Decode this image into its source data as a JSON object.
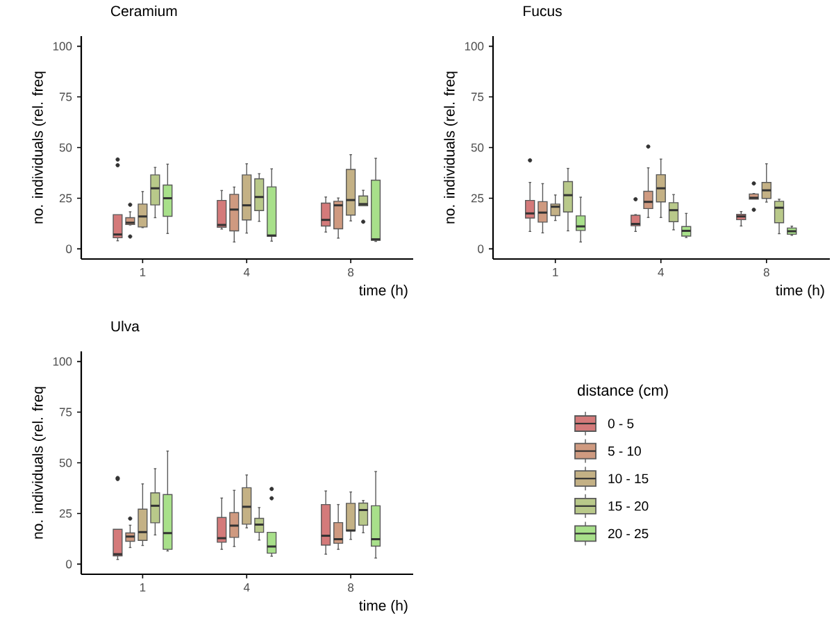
{
  "chart_data": [
    {
      "type": "box",
      "title": "Ceramium",
      "xlabel": "time (h)",
      "ylabel": "no. individuals (rel. freq",
      "categories": [
        "1",
        "4",
        "8"
      ],
      "ylim": [
        -5,
        105
      ],
      "yticks": [
        0,
        25,
        50,
        75,
        100
      ],
      "series": [
        {
          "color": "#d47a7a",
          "boxes": [
            {
              "low": 4.0,
              "q1": 5.5,
              "median": 7.1,
              "q3": 16.9,
              "high": 16.9,
              "outliers": [
                44.1,
                41.3
              ]
            },
            {
              "low": 9.8,
              "q1": 10.7,
              "median": 11.8,
              "q3": 23.9,
              "high": 28.8
            },
            {
              "low": 8.3,
              "q1": 11.3,
              "median": 14.3,
              "q3": 22.6,
              "high": 25.6
            }
          ]
        },
        {
          "color": "#cf9a80",
          "boxes": [
            {
              "low": 11.8,
              "q1": 12.0,
              "median": 12.9,
              "q3": 15.4,
              "high": 18.3,
              "outliers": [
                21.8,
                6.1
              ]
            },
            {
              "low": 3.4,
              "q1": 8.9,
              "median": 19.4,
              "q3": 26.9,
              "high": 30.5
            },
            {
              "low": 5.3,
              "q1": 9.9,
              "median": 21.5,
              "q3": 23.5,
              "high": 25.1
            }
          ]
        },
        {
          "color": "#c4b185",
          "boxes": [
            {
              "low": 10.5,
              "q1": 10.8,
              "median": 16.0,
              "q3": 22.1,
              "high": 28.3
            },
            {
              "low": 7.8,
              "q1": 14.3,
              "median": 21.5,
              "q3": 36.5,
              "high": 42.0
            },
            {
              "low": 13.8,
              "q1": 16.7,
              "median": 24.1,
              "q3": 39.2,
              "high": 46.5
            }
          ]
        },
        {
          "color": "#b9c98a",
          "boxes": [
            {
              "low": 15.4,
              "q1": 21.7,
              "median": 29.9,
              "q3": 36.5,
              "high": 40.2
            },
            {
              "low": 13.6,
              "q1": 18.9,
              "median": 25.6,
              "q3": 34.6,
              "high": 37.1
            },
            {
              "low": 21.3,
              "q1": 21.3,
              "median": 22.1,
              "q3": 26.1,
              "high": 28.9,
              "outliers": [
                13.4
              ]
            }
          ]
        },
        {
          "color": "#a8e08a",
          "boxes": [
            {
              "low": 7.6,
              "q1": 16.1,
              "median": 25.0,
              "q3": 31.5,
              "high": 41.8
            },
            {
              "low": 3.8,
              "q1": 6.2,
              "median": 6.6,
              "q3": 30.6,
              "high": 39.5
            },
            {
              "low": 3.7,
              "q1": 4.2,
              "median": 4.7,
              "q3": 33.9,
              "high": 44.7
            }
          ]
        }
      ]
    },
    {
      "type": "box",
      "title": "Fucus",
      "xlabel": "time (h)",
      "ylabel": "no. individuals (rel. freq",
      "categories": [
        "1",
        "4",
        "8"
      ],
      "ylim": [
        -5,
        105
      ],
      "yticks": [
        0,
        25,
        50,
        75,
        100
      ],
      "series": [
        {
          "color": "#d47a7a",
          "boxes": [
            {
              "low": 8.6,
              "q1": 15.2,
              "median": 17.5,
              "q3": 23.9,
              "high": 32.8,
              "outliers": [
                43.7
              ]
            },
            {
              "low": 8.6,
              "q1": 11.4,
              "median": 12.3,
              "q3": 16.6,
              "high": 16.9,
              "outliers": [
                24.5
              ]
            },
            {
              "low": 11.3,
              "q1": 14.4,
              "median": 16.0,
              "q3": 17.0,
              "high": 18.4
            }
          ]
        },
        {
          "color": "#cf9a80",
          "boxes": [
            {
              "low": 7.9,
              "q1": 13.2,
              "median": 17.9,
              "q3": 23.3,
              "high": 32.2
            },
            {
              "low": 15.5,
              "q1": 19.9,
              "median": 23.2,
              "q3": 28.4,
              "high": 40.0,
              "outliers": [
                50.5
              ]
            },
            {
              "low": 24.5,
              "q1": 24.5,
              "median": 25.2,
              "q3": 27.1,
              "high": 27.3,
              "outliers": [
                32.3,
                19.3
              ]
            }
          ]
        },
        {
          "color": "#c4b185",
          "boxes": [
            {
              "low": 14.0,
              "q1": 16.4,
              "median": 20.8,
              "q3": 22.1,
              "high": 26.6
            },
            {
              "low": 15.5,
              "q1": 23.2,
              "median": 29.9,
              "q3": 36.6,
              "high": 44.3
            },
            {
              "low": 23.1,
              "q1": 24.9,
              "median": 28.9,
              "q3": 32.8,
              "high": 42.0
            }
          ]
        },
        {
          "color": "#b9c98a",
          "boxes": [
            {
              "low": 8.9,
              "q1": 18.2,
              "median": 26.5,
              "q3": 33.2,
              "high": 39.7
            },
            {
              "low": 9.4,
              "q1": 13.4,
              "median": 19.1,
              "q3": 22.8,
              "high": 26.8
            },
            {
              "low": 7.5,
              "q1": 12.9,
              "median": 20.3,
              "q3": 23.5,
              "high": 24.5
            }
          ]
        },
        {
          "color": "#a8e08a",
          "boxes": [
            {
              "low": 3.4,
              "q1": 9.1,
              "median": 11.1,
              "q3": 16.3,
              "high": 25.5
            },
            {
              "low": 5.6,
              "q1": 6.3,
              "median": 8.9,
              "q3": 11.0,
              "high": 17.5
            },
            {
              "low": 6.7,
              "q1": 7.2,
              "median": 8.7,
              "q3": 10.3,
              "high": 11.2
            }
          ]
        }
      ]
    },
    {
      "type": "box",
      "title": "Ulva",
      "xlabel": "time (h)",
      "ylabel": "no. individuals (rel. freq",
      "categories": [
        "1",
        "4",
        "8"
      ],
      "ylim": [
        -5,
        105
      ],
      "yticks": [
        0,
        25,
        50,
        75,
        100
      ],
      "legend": "right",
      "legend_title": "distance (cm)",
      "series": [
        {
          "name": "0 - 5",
          "color": "#d47a7a",
          "boxes": [
            {
              "low": 2.3,
              "q1": 4.1,
              "median": 4.9,
              "q3": 17.2,
              "high": 17.2,
              "outliers": [
                42.5,
                42.0
              ]
            },
            {
              "low": 7.3,
              "q1": 10.8,
              "median": 12.8,
              "q3": 23.0,
              "high": 32.6
            },
            {
              "low": 4.9,
              "q1": 9.4,
              "median": 14.0,
              "q3": 29.4,
              "high": 36.1
            }
          ]
        },
        {
          "name": "5 - 10",
          "color": "#cf9a80",
          "boxes": [
            {
              "low": 8.2,
              "q1": 11.3,
              "median": 13.6,
              "q3": 15.4,
              "high": 19.2,
              "outliers": [
                22.5
              ]
            },
            {
              "low": 8.7,
              "q1": 13.2,
              "median": 19.0,
              "q3": 25.4,
              "high": 36.4
            },
            {
              "low": 7.3,
              "q1": 10.3,
              "median": 12.3,
              "q3": 20.5,
              "high": 29.4
            }
          ]
        },
        {
          "name": "10 - 15",
          "color": "#c4b185",
          "boxes": [
            {
              "low": 9.2,
              "q1": 11.7,
              "median": 15.8,
              "q3": 27.1,
              "high": 39.6
            },
            {
              "low": 17.9,
              "q1": 19.7,
              "median": 28.3,
              "q3": 37.7,
              "high": 44.0
            },
            {
              "low": 12.2,
              "q1": 16.4,
              "median": 16.6,
              "q3": 30.0,
              "high": 35.6
            }
          ]
        },
        {
          "name": "15 - 20",
          "color": "#b9c98a",
          "boxes": [
            {
              "low": 14.4,
              "q1": 20.4,
              "median": 28.8,
              "q3": 35.2,
              "high": 47.1
            },
            {
              "low": 11.9,
              "q1": 15.7,
              "median": 19.5,
              "q3": 22.6,
              "high": 27.9
            },
            {
              "low": 15.5,
              "q1": 19.2,
              "median": 26.7,
              "q3": 30.1,
              "high": 31.4
            }
          ]
        },
        {
          "name": "20 - 25",
          "color": "#a8e08a",
          "boxes": [
            {
              "low": 6.5,
              "q1": 7.3,
              "median": 15.3,
              "q3": 34.3,
              "high": 55.8
            },
            {
              "low": 3.9,
              "q1": 5.4,
              "median": 8.7,
              "q3": 15.7,
              "high": 15.7,
              "outliers": [
                37.1,
                32.5
              ]
            },
            {
              "low": 3.0,
              "q1": 8.9,
              "median": 12.3,
              "q3": 28.8,
              "high": 45.7
            }
          ]
        }
      ]
    }
  ]
}
